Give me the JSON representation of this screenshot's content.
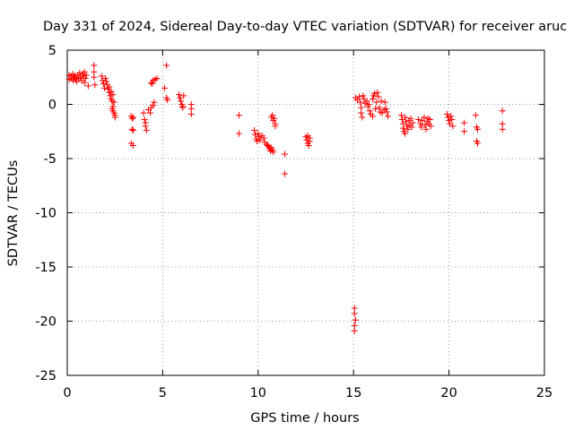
{
  "chart_data": {
    "type": "scatter",
    "title": "Day 331 of 2024, Sidereal Day-to-day VTEC variation (SDTVAR) for receiver aruc",
    "xlabel": "GPS time / hours",
    "ylabel": "SDTVAR / TECUs",
    "xlim": [
      0,
      25
    ],
    "ylim": [
      -25,
      5
    ],
    "xticks": [
      0,
      5,
      10,
      15,
      20,
      25
    ],
    "yticks": [
      -25,
      -20,
      -15,
      -10,
      -5,
      0,
      5
    ],
    "grid": true,
    "marker": "+",
    "colors": {
      "marker": "#ff0000",
      "grid": "#999999",
      "axis": "#000000"
    },
    "series": [
      {
        "name": "SDTVAR",
        "points": [
          [
            0.1,
            2.7
          ],
          [
            0.1,
            2.3
          ],
          [
            0.2,
            2.6
          ],
          [
            0.2,
            2.4
          ],
          [
            0.3,
            2.8
          ],
          [
            0.3,
            2.2
          ],
          [
            0.35,
            2.5
          ],
          [
            0.4,
            2.6
          ],
          [
            0.45,
            2.3
          ],
          [
            0.5,
            2.1
          ],
          [
            0.55,
            2.7
          ],
          [
            0.6,
            2.4
          ],
          [
            0.65,
            2.9
          ],
          [
            0.7,
            2.5
          ],
          [
            0.75,
            2.2
          ],
          [
            0.8,
            2.8
          ],
          [
            0.85,
            2.6
          ],
          [
            0.9,
            3.0
          ],
          [
            0.95,
            2.4
          ],
          [
            1.0,
            2.7
          ],
          [
            0.9,
            2.0
          ],
          [
            1.1,
            1.7
          ],
          [
            1.4,
            3.6
          ],
          [
            1.4,
            3.0
          ],
          [
            1.4,
            2.5
          ],
          [
            1.45,
            1.8
          ],
          [
            1.8,
            2.6
          ],
          [
            1.85,
            2.2
          ],
          [
            1.9,
            1.9
          ],
          [
            1.95,
            1.5
          ],
          [
            2.0,
            2.4
          ],
          [
            2.05,
            2.1
          ],
          [
            2.1,
            1.8
          ],
          [
            2.15,
            1.4
          ],
          [
            2.2,
            1.1
          ],
          [
            2.2,
            1.6
          ],
          [
            2.25,
            0.8
          ],
          [
            2.3,
            0.5
          ],
          [
            2.3,
            1.2
          ],
          [
            2.35,
            0.3
          ],
          [
            2.35,
            -0.4
          ],
          [
            2.4,
            0.9
          ],
          [
            2.4,
            -0.6
          ],
          [
            2.45,
            0.2
          ],
          [
            2.45,
            -0.8
          ],
          [
            2.5,
            -1.0
          ],
          [
            2.5,
            -1.2
          ],
          [
            2.4,
            -0.2
          ],
          [
            3.35,
            -1.1
          ],
          [
            3.4,
            -1.3
          ],
          [
            3.45,
            -1.2
          ],
          [
            3.4,
            -2.3
          ],
          [
            3.45,
            -2.4
          ],
          [
            3.35,
            -3.6
          ],
          [
            3.45,
            -3.8
          ],
          [
            4.0,
            -0.8
          ],
          [
            4.05,
            -1.4
          ],
          [
            4.1,
            -1.7
          ],
          [
            4.1,
            -2.0
          ],
          [
            4.15,
            -2.4
          ],
          [
            4.25,
            -0.5
          ],
          [
            4.35,
            -0.8
          ],
          [
            4.4,
            -0.3
          ],
          [
            4.5,
            -0.1
          ],
          [
            4.55,
            0.2
          ],
          [
            4.4,
            2.0
          ],
          [
            4.5,
            2.2
          ],
          [
            4.6,
            2.3
          ],
          [
            4.7,
            2.4
          ],
          [
            4.45,
            1.9
          ],
          [
            5.2,
            3.6
          ],
          [
            5.1,
            1.5
          ],
          [
            5.2,
            0.6
          ],
          [
            5.25,
            0.4
          ],
          [
            5.85,
            0.9
          ],
          [
            5.9,
            0.6
          ],
          [
            5.95,
            0.3
          ],
          [
            6.0,
            0.0
          ],
          [
            6.05,
            -0.2
          ],
          [
            6.1,
            0.8
          ],
          [
            6.05,
            -0.3
          ],
          [
            6.5,
            0.0
          ],
          [
            6.5,
            -0.4
          ],
          [
            6.5,
            -0.9
          ],
          [
            9.0,
            -1.0
          ],
          [
            9.0,
            -2.7
          ],
          [
            9.8,
            -2.4
          ],
          [
            9.85,
            -2.8
          ],
          [
            9.9,
            -3.2
          ],
          [
            9.95,
            -3.4
          ],
          [
            10.0,
            -2.7
          ],
          [
            10.05,
            -3.0
          ],
          [
            10.1,
            -3.3
          ],
          [
            10.2,
            -2.9
          ],
          [
            10.3,
            -3.1
          ],
          [
            10.35,
            -3.5
          ],
          [
            10.45,
            -3.7
          ],
          [
            10.5,
            -3.8
          ],
          [
            10.55,
            -3.9
          ],
          [
            10.6,
            -4.1
          ],
          [
            10.65,
            -4.3
          ],
          [
            10.7,
            -4.0
          ],
          [
            10.75,
            -4.2
          ],
          [
            10.8,
            -4.4
          ],
          [
            10.7,
            -1.2
          ],
          [
            10.75,
            -1.0
          ],
          [
            10.8,
            -1.5
          ],
          [
            10.85,
            -1.3
          ],
          [
            10.9,
            -1.8
          ],
          [
            10.9,
            -2.0
          ],
          [
            11.4,
            -4.6
          ],
          [
            11.4,
            -6.4
          ],
          [
            12.5,
            -3.0
          ],
          [
            12.55,
            -3.3
          ],
          [
            12.6,
            -3.6
          ],
          [
            12.6,
            -2.9
          ],
          [
            12.65,
            -3.8
          ],
          [
            12.7,
            -3.4
          ],
          [
            12.7,
            -3.1
          ],
          [
            15.05,
            -18.8
          ],
          [
            15.05,
            -19.3
          ],
          [
            15.1,
            -19.9
          ],
          [
            15.05,
            -20.4
          ],
          [
            15.05,
            -20.9
          ],
          [
            15.1,
            0.6
          ],
          [
            15.2,
            0.4
          ],
          [
            15.3,
            0.7
          ],
          [
            15.35,
            0.2
          ],
          [
            15.4,
            -0.3
          ],
          [
            15.4,
            -0.8
          ],
          [
            15.45,
            -1.2
          ],
          [
            15.5,
            0.8
          ],
          [
            15.55,
            0.5
          ],
          [
            15.6,
            0.1
          ],
          [
            15.7,
            0.3
          ],
          [
            15.75,
            -0.2
          ],
          [
            15.8,
            0.0
          ],
          [
            15.85,
            -0.6
          ],
          [
            15.9,
            -0.9
          ],
          [
            16.0,
            -1.1
          ],
          [
            16.0,
            0.5
          ],
          [
            16.05,
            0.8
          ],
          [
            16.1,
            1.0
          ],
          [
            16.15,
            -0.4
          ],
          [
            16.2,
            0.2
          ],
          [
            16.25,
            1.1
          ],
          [
            16.3,
            0.7
          ],
          [
            16.35,
            -0.3
          ],
          [
            16.4,
            -0.7
          ],
          [
            16.45,
            0.3
          ],
          [
            16.5,
            -0.8
          ],
          [
            16.6,
            -0.5
          ],
          [
            16.7,
            -0.4
          ],
          [
            16.75,
            -0.7
          ],
          [
            16.8,
            -1.1
          ],
          [
            16.65,
            0.2
          ],
          [
            17.5,
            -1.0
          ],
          [
            17.55,
            -1.4
          ],
          [
            17.6,
            -1.8
          ],
          [
            17.6,
            -2.2
          ],
          [
            17.65,
            -2.5
          ],
          [
            17.7,
            -1.2
          ],
          [
            17.75,
            -1.6
          ],
          [
            17.8,
            -2.0
          ],
          [
            17.85,
            -2.3
          ],
          [
            17.9,
            -1.5
          ],
          [
            17.95,
            -1.9
          ],
          [
            18.0,
            -1.3
          ],
          [
            18.05,
            -2.1
          ],
          [
            18.1,
            -1.7
          ],
          [
            17.7,
            -2.7
          ],
          [
            18.4,
            -1.4
          ],
          [
            18.5,
            -1.8
          ],
          [
            18.55,
            -2.1
          ],
          [
            18.6,
            -1.5
          ],
          [
            18.7,
            -1.2
          ],
          [
            18.75,
            -1.9
          ],
          [
            18.8,
            -2.3
          ],
          [
            18.85,
            -1.6
          ],
          [
            18.9,
            -1.3
          ],
          [
            18.95,
            -1.8
          ],
          [
            19.0,
            -1.4
          ],
          [
            19.05,
            -2.0
          ],
          [
            19.9,
            -0.9
          ],
          [
            19.95,
            -1.2
          ],
          [
            20.0,
            -1.5
          ],
          [
            20.05,
            -1.8
          ],
          [
            20.1,
            -1.1
          ],
          [
            20.15,
            -1.4
          ],
          [
            20.2,
            -2.0
          ],
          [
            20.8,
            -1.7
          ],
          [
            20.8,
            -2.5
          ],
          [
            21.4,
            -1.0
          ],
          [
            21.45,
            -2.1
          ],
          [
            21.5,
            -2.3
          ],
          [
            21.45,
            -3.4
          ],
          [
            21.5,
            -3.6
          ],
          [
            22.8,
            -0.6
          ],
          [
            22.8,
            -1.8
          ],
          [
            22.8,
            -2.3
          ]
        ]
      }
    ]
  }
}
